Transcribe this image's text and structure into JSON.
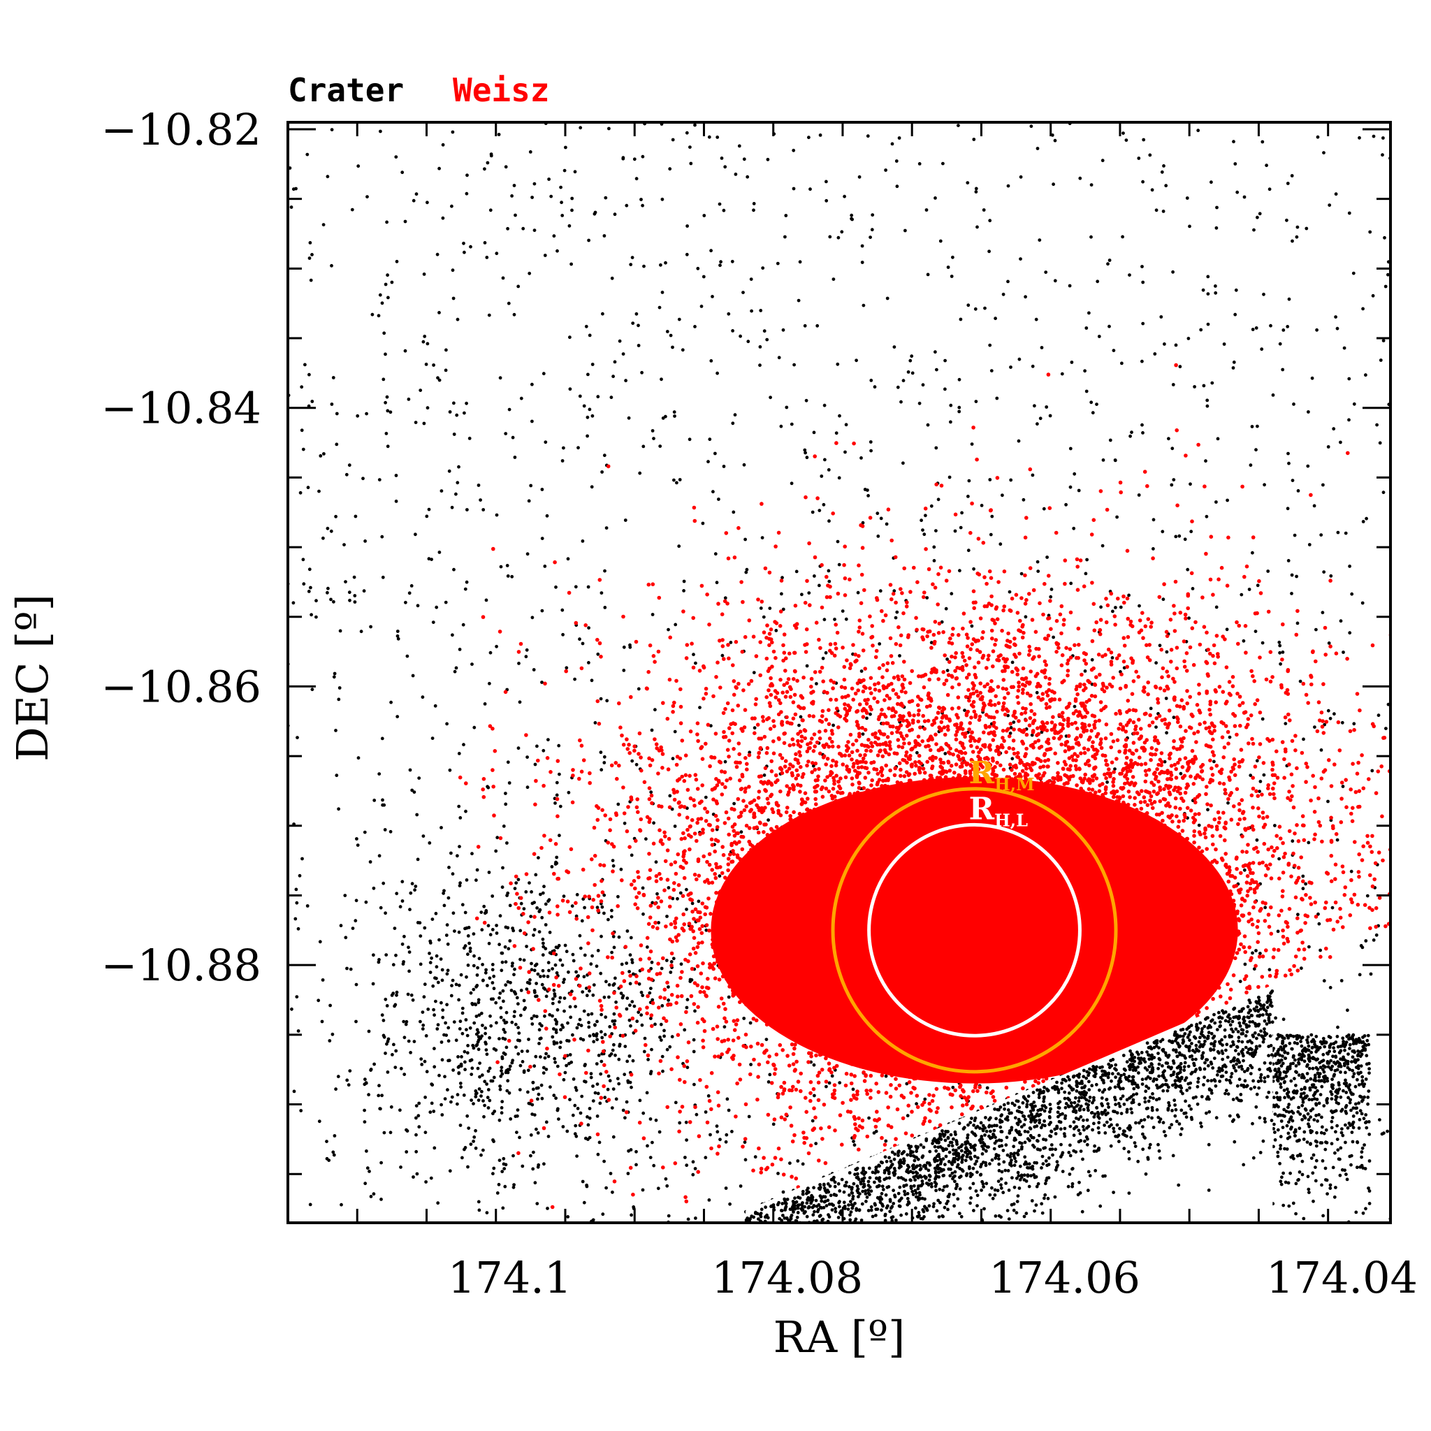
{
  "chart_data": {
    "type": "scatter",
    "title": "",
    "xlabel": "RA [º]",
    "ylabel": "DEC [º]",
    "x_reversed": true,
    "xlim": [
      174.116,
      174.0365
    ],
    "ylim": [
      -10.8985,
      -10.8195
    ],
    "xticks": [
      174.1,
      174.08,
      174.06,
      174.04
    ],
    "xtick_labels": [
      "174.1",
      "174.08",
      "174.06",
      "174.04"
    ],
    "yticks": [
      -10.82,
      -10.84,
      -10.86,
      -10.88
    ],
    "ytick_labels": [
      "−10.82",
      "−10.84",
      "−10.86",
      "−10.88"
    ],
    "grid": false,
    "legend_position": "top-left",
    "series": [
      {
        "name": "Crater",
        "color": "#000000",
        "approx_count": 6000,
        "description_values": {
          "ra_range": [
            174.116,
            174.0365
          ],
          "dec_range": [
            -10.8985,
            -10.8195
          ],
          "dense_region_dec_below": -10.886
        }
      },
      {
        "name": "Weisz",
        "color": "#ff0000",
        "approx_count": 45000,
        "center_ra": 174.0665,
        "center_dec": -10.8775,
        "lower_boundary": [
          [
            174.078,
            -10.8955
          ],
          [
            174.0475,
            -10.8825
          ]
        ]
      }
    ],
    "circles": [
      {
        "label": "R",
        "subscript": "H,M",
        "color": "#ffa500",
        "center_ra": 174.0665,
        "center_dec": -10.8775,
        "radius_deg": 0.0102
      },
      {
        "label": "R",
        "subscript": "H,L",
        "color": "#ffffff",
        "center_ra": 174.0665,
        "center_dec": -10.8775,
        "radius_deg": 0.0076
      }
    ]
  }
}
